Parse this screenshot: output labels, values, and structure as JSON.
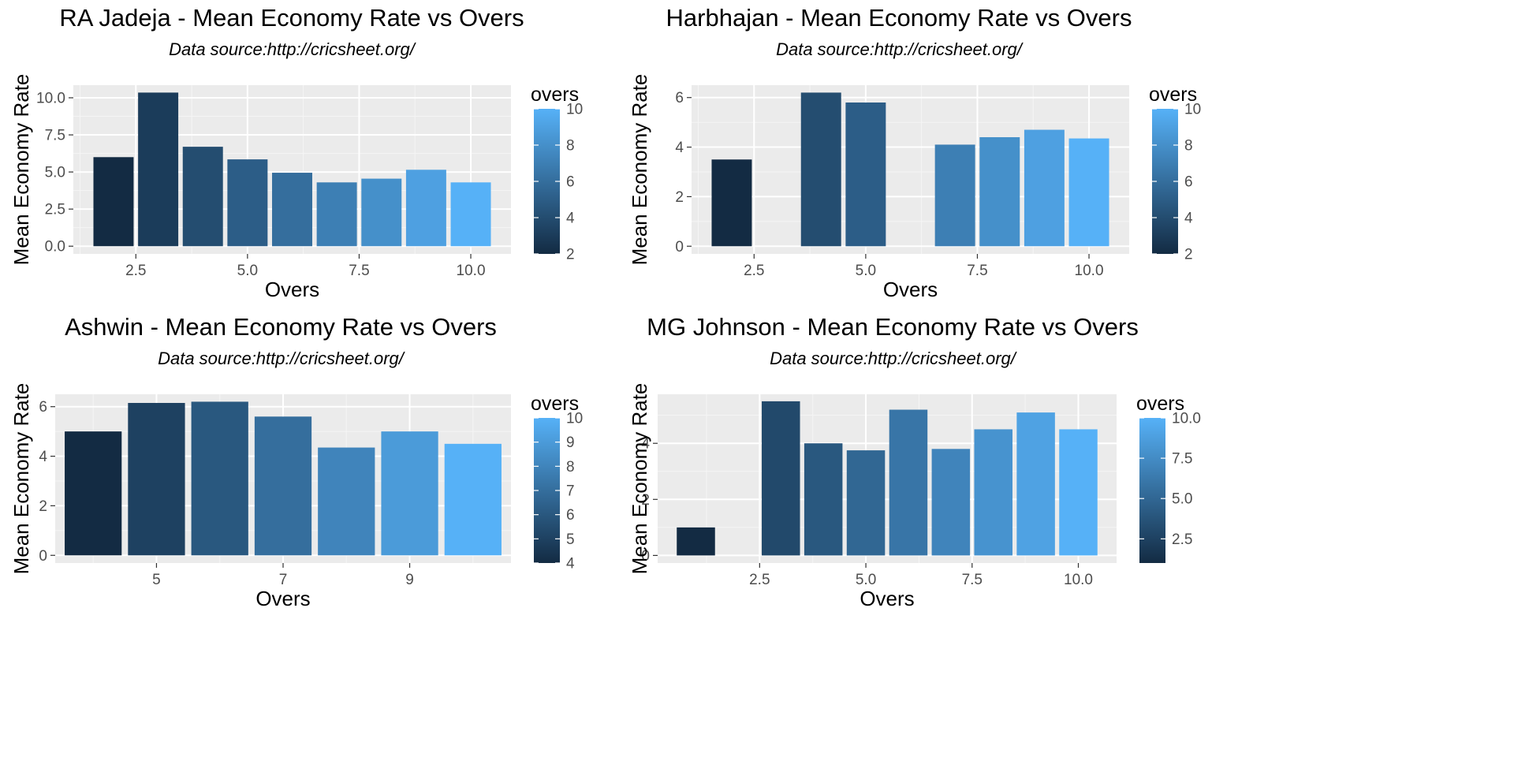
{
  "chart_data": [
    {
      "type": "bar",
      "title": "RA Jadeja - Mean Economy Rate vs Overs",
      "subtitle": "Data source:http://cricsheet.org/",
      "xlabel": "Overs",
      "ylabel": "Mean Economy Rate",
      "x": [
        2,
        3,
        4,
        5,
        6,
        7,
        8,
        9,
        10
      ],
      "values": [
        6.0,
        10.35,
        6.7,
        5.85,
        4.95,
        4.3,
        4.55,
        5.15,
        4.3
      ],
      "xlim": [
        1.1,
        10.9
      ],
      "ylim": [
        -0.52,
        10.85
      ],
      "xticks": [
        2.5,
        5.0,
        7.5,
        10.0
      ],
      "xtick_labels": [
        "2.5",
        "5.0",
        "7.5",
        "10.0"
      ],
      "yticks": [
        0,
        2.5,
        5,
        7.5,
        10
      ],
      "ytick_labels": [
        "0.0",
        "2.5",
        "5.0",
        "7.5",
        "10.0"
      ],
      "legend": {
        "title": "overs",
        "min": 2,
        "max": 10,
        "ticks": [
          2,
          4,
          6,
          8,
          10
        ],
        "tick_labels": [
          "2",
          "4",
          "6",
          "8",
          "10"
        ],
        "position": "right"
      },
      "grid": true
    },
    {
      "type": "bar",
      "title": "Harbhajan - Mean Economy Rate vs Overs",
      "subtitle": "Data source:http://cricsheet.org/",
      "xlabel": "Overs",
      "ylabel": "Mean Economy Rate",
      "x": [
        2,
        4,
        5,
        7,
        8,
        9,
        10
      ],
      "values": [
        3.5,
        6.2,
        5.8,
        4.1,
        4.4,
        4.7,
        4.35
      ],
      "xlim": [
        1.1,
        10.9
      ],
      "ylim": [
        -0.31,
        6.5
      ],
      "xticks": [
        2.5,
        5.0,
        7.5,
        10.0
      ],
      "xtick_labels": [
        "2.5",
        "5.0",
        "7.5",
        "10.0"
      ],
      "yticks": [
        0,
        2,
        4,
        6
      ],
      "ytick_labels": [
        "0",
        "2",
        "4",
        "6"
      ],
      "legend": {
        "title": "overs",
        "min": 2,
        "max": 10,
        "ticks": [
          2,
          4,
          6,
          8,
          10
        ],
        "tick_labels": [
          "2",
          "4",
          "6",
          "8",
          "10"
        ],
        "position": "right"
      },
      "grid": true
    },
    {
      "type": "bar",
      "title": "Ashwin - Mean Economy Rate vs Overs",
      "subtitle": "Data source:http://cricsheet.org/",
      "xlabel": "Overs",
      "ylabel": "Mean Economy Rate",
      "x": [
        4,
        5,
        6,
        7,
        8,
        9,
        10
      ],
      "values": [
        5.0,
        6.15,
        6.2,
        5.6,
        4.35,
        5.0,
        4.5
      ],
      "xlim": [
        3.4,
        10.6
      ],
      "ylim": [
        -0.31,
        6.5
      ],
      "xticks": [
        5,
        7,
        9
      ],
      "xtick_labels": [
        "5",
        "7",
        "9"
      ],
      "yticks": [
        0,
        2,
        4,
        6
      ],
      "ytick_labels": [
        "0",
        "2",
        "4",
        "6"
      ],
      "legend": {
        "title": "overs",
        "min": 4,
        "max": 10,
        "ticks": [
          4,
          5,
          6,
          7,
          8,
          9,
          10
        ],
        "tick_labels": [
          "4",
          "5",
          "6",
          "7",
          "8",
          "9",
          "10"
        ],
        "position": "right"
      },
      "grid": true
    },
    {
      "type": "bar",
      "title": "MG Johnson - Mean Economy Rate vs Overs",
      "subtitle": "Data source:http://cricsheet.org/",
      "xlabel": "Overs",
      "ylabel": "Mean Economy Rate",
      "x": [
        1,
        3,
        4,
        5,
        6,
        7,
        8,
        9,
        10
      ],
      "values": [
        1.0,
        5.5,
        4.0,
        3.75,
        5.2,
        3.8,
        4.5,
        5.1,
        4.5
      ],
      "xlim": [
        0.1,
        10.9
      ],
      "ylim": [
        -0.27,
        5.75
      ],
      "xticks": [
        2.5,
        5.0,
        7.5,
        10.0
      ],
      "xtick_labels": [
        "2.5",
        "5.0",
        "7.5",
        "10.0"
      ],
      "yticks": [
        0,
        2,
        4
      ],
      "ytick_labels": [
        "0",
        "2",
        "4"
      ],
      "legend": {
        "title": "overs",
        "min": 1,
        "max": 10,
        "ticks": [
          2.5,
          5.0,
          7.5,
          10.0
        ],
        "tick_labels": [
          "2.5",
          "5.0",
          "7.5",
          "10.0"
        ],
        "position": "right"
      },
      "grid": true
    }
  ],
  "colors": {
    "low": "#132B43",
    "high": "#56B1F7",
    "panel_background": "#EBEBEB",
    "grid_major": "#FFFFFF",
    "tick_text": "#4D4D4D"
  }
}
